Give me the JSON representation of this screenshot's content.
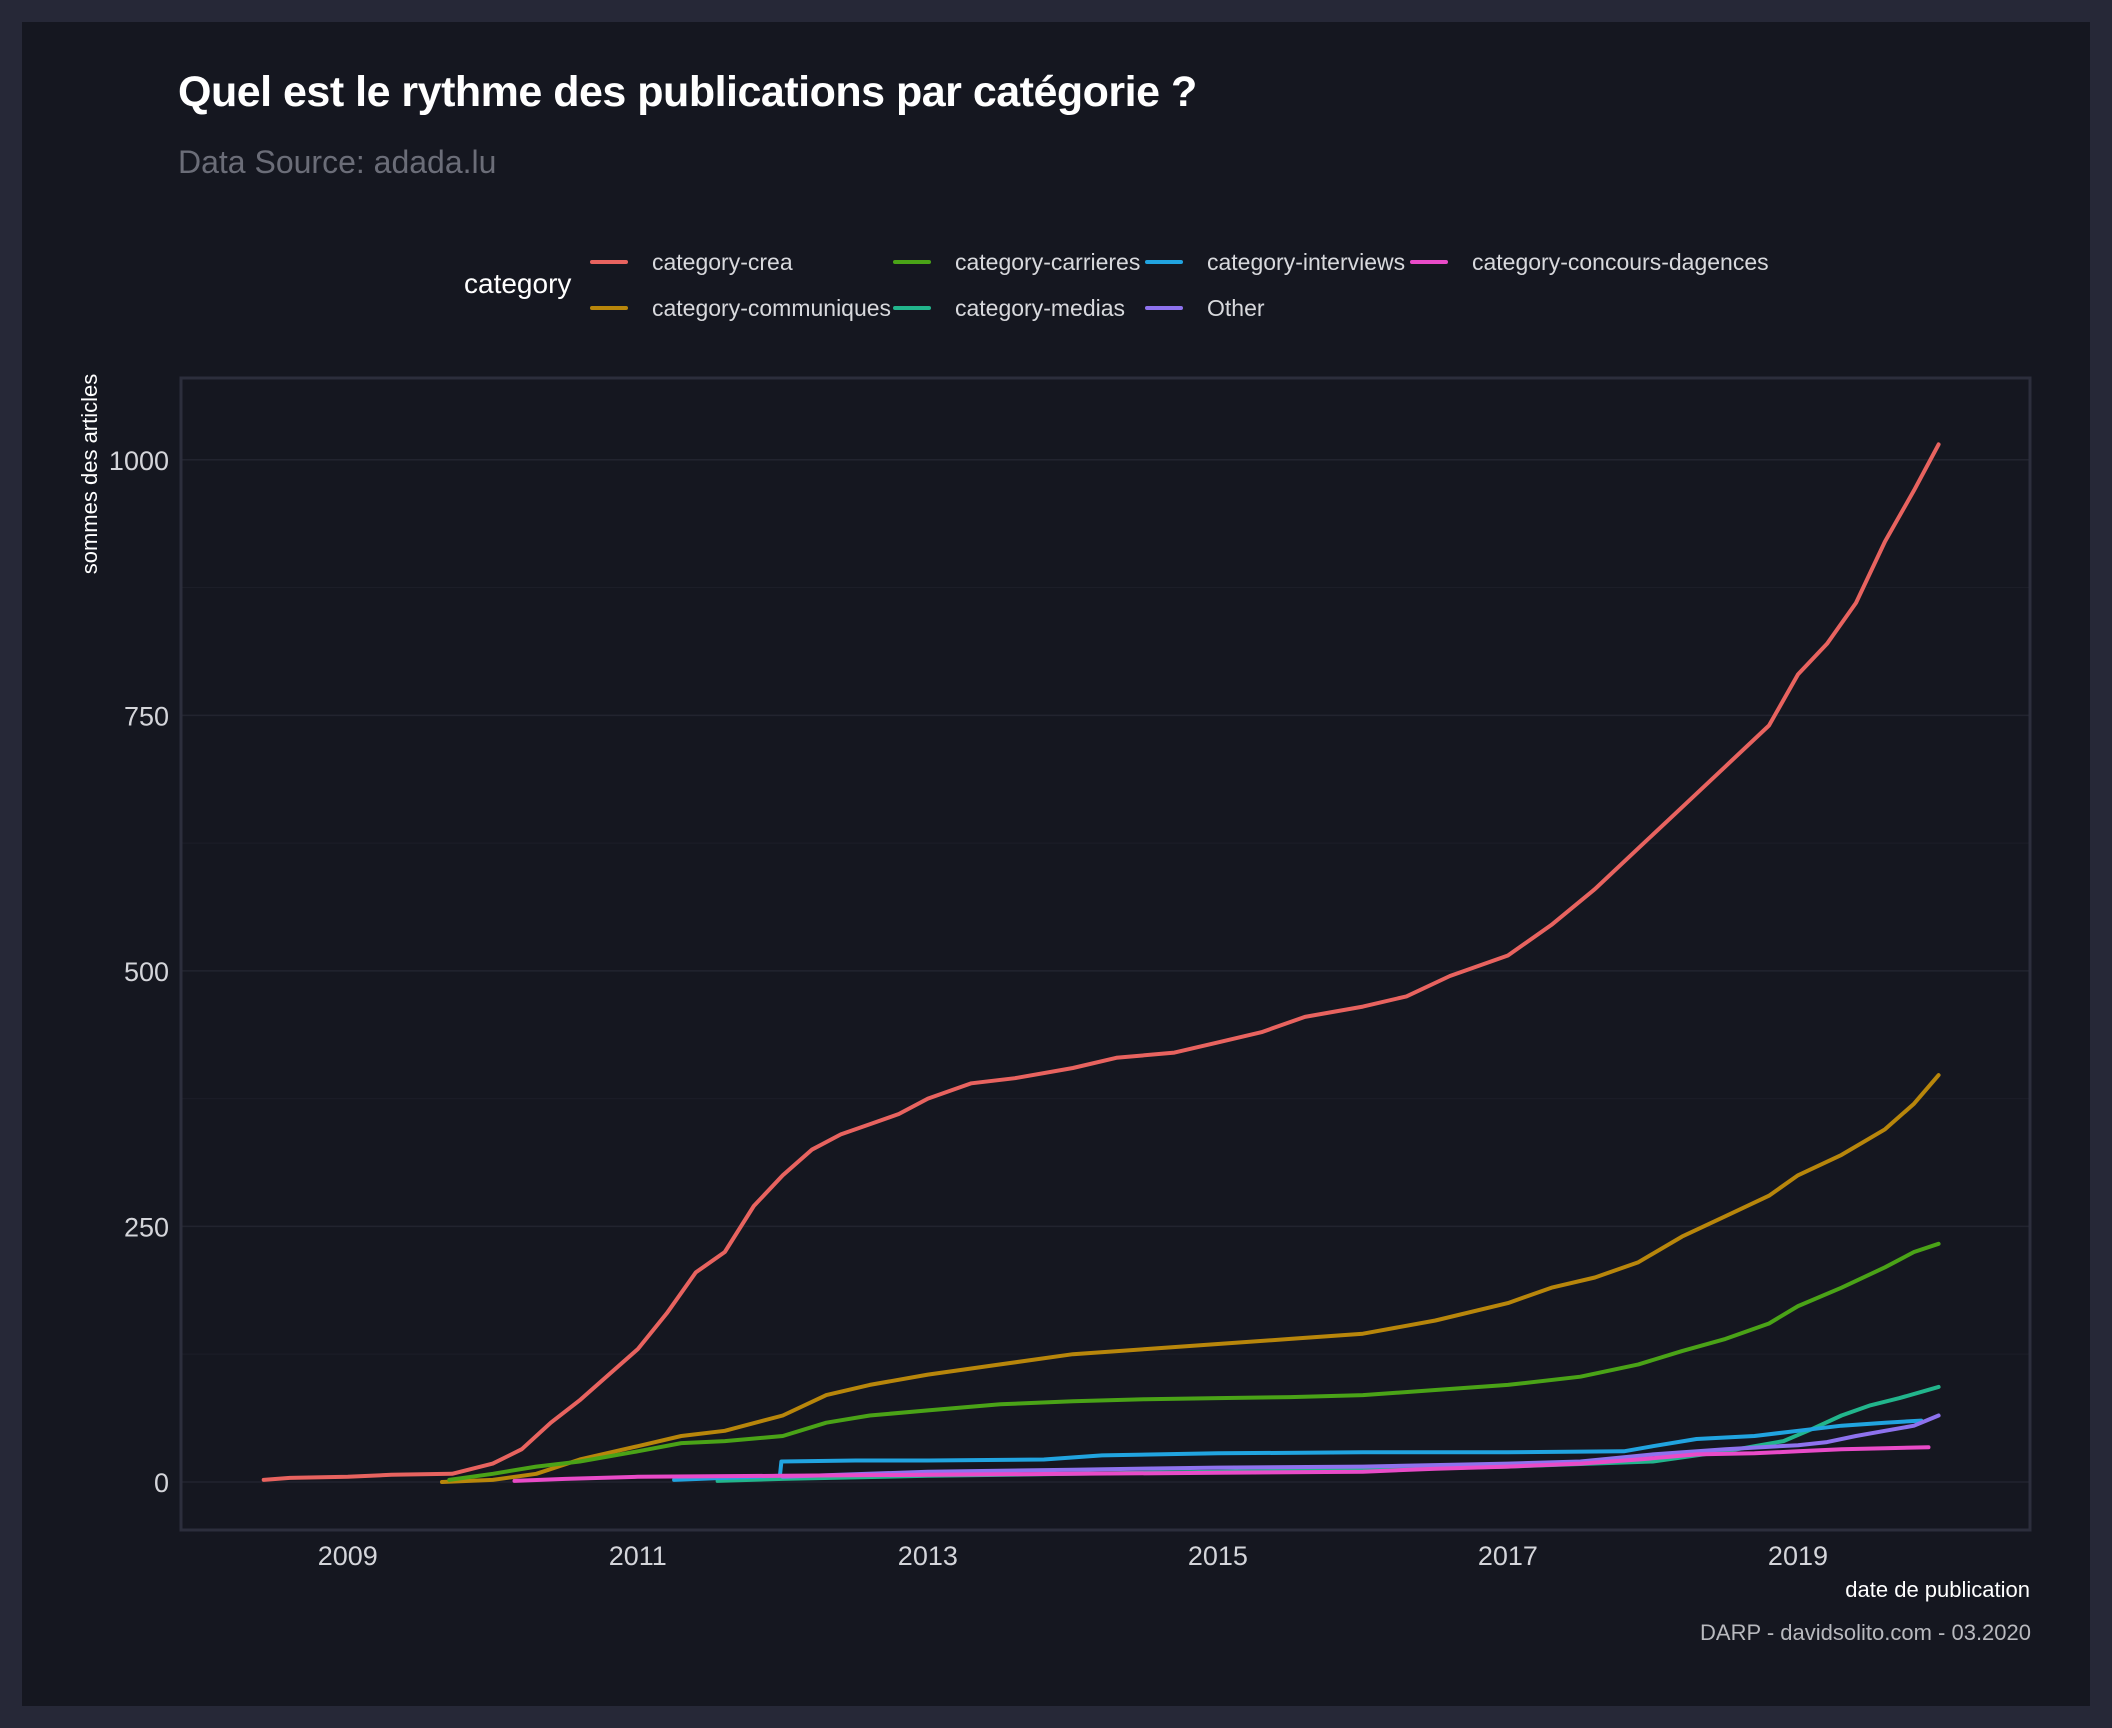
{
  "chart_data": {
    "type": "line",
    "title": "Quel est le rythme des publications par catégorie ?",
    "subtitle": "Data Source: adada.lu",
    "caption": "DARP - davidsolito.com - 03.2020",
    "xlabel": "date de publication",
    "ylabel": "sommes des articles",
    "legend_title": "category",
    "legend_position": "top",
    "grid": true,
    "xlim": [
      2007.85,
      2020.6
    ],
    "ylim": [
      -47,
      1080
    ],
    "x_ticks": [
      "2009",
      "2011",
      "2013",
      "2015",
      "2017",
      "2019"
    ],
    "y_ticks": [
      "0",
      "250",
      "500",
      "750",
      "1000"
    ],
    "series": [
      {
        "name": "category-crea",
        "color": "#e8635f",
        "x": [
          2008.42,
          2008.6,
          2009.0,
          2009.3,
          2009.72,
          2010.0,
          2010.2,
          2010.4,
          2010.6,
          2010.8,
          2011.0,
          2011.2,
          2011.4,
          2011.6,
          2011.8,
          2012.0,
          2012.2,
          2012.4,
          2012.6,
          2012.8,
          2013.0,
          2013.3,
          2013.6,
          2014.0,
          2014.3,
          2014.7,
          2015.0,
          2015.3,
          2015.6,
          2016.0,
          2016.3,
          2016.6,
          2017.0,
          2017.3,
          2017.6,
          2017.9,
          2018.2,
          2018.5,
          2018.8,
          2019.0,
          2019.2,
          2019.4,
          2019.6,
          2019.8,
          2019.97
        ],
        "y": [
          2,
          4,
          5,
          7,
          8,
          18,
          32,
          58,
          80,
          105,
          130,
          165,
          205,
          225,
          270,
          300,
          325,
          340,
          350,
          360,
          375,
          390,
          395,
          405,
          415,
          420,
          430,
          440,
          455,
          465,
          475,
          495,
          515,
          545,
          580,
          620,
          660,
          700,
          740,
          790,
          820,
          860,
          920,
          970,
          1015
        ]
      },
      {
        "name": "category-communiques",
        "color": "#b8860b",
        "x": [
          2009.65,
          2010.0,
          2010.3,
          2010.6,
          2011.0,
          2011.3,
          2011.6,
          2012.0,
          2012.3,
          2012.6,
          2013.0,
          2013.5,
          2014.0,
          2014.5,
          2015.0,
          2015.5,
          2016.0,
          2016.5,
          2017.0,
          2017.3,
          2017.6,
          2017.9,
          2018.2,
          2018.5,
          2018.8,
          2019.0,
          2019.3,
          2019.6,
          2019.8,
          2019.97
        ],
        "y": [
          0,
          2,
          8,
          22,
          35,
          45,
          50,
          65,
          85,
          95,
          105,
          115,
          125,
          130,
          135,
          140,
          145,
          158,
          175,
          190,
          200,
          215,
          240,
          260,
          280,
          300,
          320,
          345,
          370,
          398
        ]
      },
      {
        "name": "category-carrieres",
        "color": "#4aa317",
        "x": [
          2009.7,
          2010.0,
          2010.3,
          2010.6,
          2011.0,
          2011.3,
          2011.6,
          2012.0,
          2012.3,
          2012.6,
          2013.0,
          2013.5,
          2014.0,
          2014.5,
          2015.0,
          2015.5,
          2016.0,
          2016.5,
          2017.0,
          2017.5,
          2017.9,
          2018.2,
          2018.5,
          2018.8,
          2019.0,
          2019.3,
          2019.6,
          2019.8,
          2019.97
        ],
        "y": [
          2,
          8,
          15,
          20,
          30,
          38,
          40,
          45,
          58,
          65,
          70,
          76,
          79,
          81,
          82,
          83,
          85,
          90,
          95,
          103,
          115,
          128,
          140,
          155,
          172,
          190,
          210,
          225,
          233
        ]
      },
      {
        "name": "category-medias",
        "color": "#22b58c",
        "x": [
          2011.55,
          2012.0,
          2013.0,
          2014.0,
          2015.0,
          2016.0,
          2017.0,
          2018.0,
          2018.5,
          2018.9,
          2019.1,
          2019.3,
          2019.5,
          2019.7,
          2019.97
        ],
        "y": [
          1,
          3,
          6,
          8,
          10,
          12,
          15,
          20,
          30,
          40,
          52,
          65,
          75,
          82,
          93
        ]
      },
      {
        "name": "category-interviews",
        "color": "#21a4e0",
        "x": [
          2011.25,
          2011.6,
          2011.98,
          2011.99,
          2012.5,
          2013.0,
          2013.8,
          2014.2,
          2015.0,
          2016.0,
          2017.0,
          2017.8,
          2018.0,
          2018.3,
          2018.7,
          2019.0,
          2019.3,
          2019.6,
          2019.85
        ],
        "y": [
          2,
          4,
          6,
          20,
          21,
          21,
          22,
          26,
          28,
          29,
          29,
          30,
          35,
          42,
          45,
          50,
          55,
          58,
          60
        ]
      },
      {
        "name": "Other",
        "color": "#8e72ee",
        "x": [
          2012.0,
          2013.0,
          2014.0,
          2015.0,
          2016.0,
          2017.0,
          2017.5,
          2018.0,
          2018.5,
          2019.0,
          2019.2,
          2019.4,
          2019.6,
          2019.8,
          2019.97
        ],
        "y": [
          5,
          10,
          12,
          14,
          15,
          18,
          20,
          27,
          32,
          36,
          39,
          45,
          50,
          55,
          65
        ]
      },
      {
        "name": "category-concours-dagences",
        "color": "#e94bc8",
        "x": [
          2010.15,
          2010.5,
          2011.0,
          2012.0,
          2013.0,
          2014.0,
          2015.0,
          2016.0,
          2016.5,
          2017.0,
          2017.5,
          2017.9,
          2018.3,
          2018.7,
          2019.0,
          2019.3,
          2019.6,
          2019.9
        ],
        "y": [
          1,
          3,
          5,
          6,
          7,
          8,
          9,
          10,
          13,
          15,
          18,
          22,
          27,
          28,
          30,
          32,
          33,
          34
        ]
      }
    ]
  }
}
